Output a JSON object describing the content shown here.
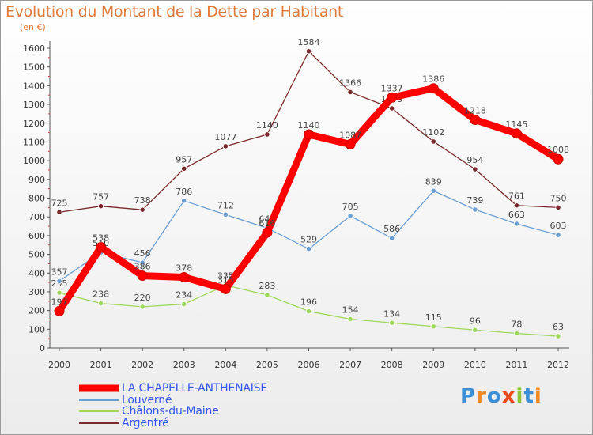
{
  "title": "Evolution du Montant de la Dette par Habitant",
  "unit": "(en €)",
  "logo": {
    "text": "Proxiti",
    "colors": [
      "#3a8fd8",
      "#f08a24",
      "#3a8fd8",
      "#e84a1a",
      "#8cc43c",
      "#3a8fd8",
      "#f08a24"
    ]
  },
  "chart_data": {
    "type": "line",
    "title": "Evolution du Montant de la Dette par Habitant",
    "ylabel": "(en €)",
    "xlabel": "",
    "ylim": [
      0,
      1600
    ],
    "yticks": [
      0,
      100,
      200,
      300,
      400,
      500,
      600,
      700,
      800,
      900,
      1000,
      1100,
      1200,
      1300,
      1400,
      1500,
      1600
    ],
    "grid": false,
    "legend_position": "bottom-left",
    "x": [
      "2000",
      "2001",
      "2002",
      "2003",
      "2004",
      "2005",
      "2006",
      "2007",
      "2008",
      "2009",
      "2010",
      "2011",
      "2012"
    ],
    "series": [
      {
        "name": "LA CHAPELLE-ANTHENAISE",
        "color": "#ff0000",
        "values": [
          197,
          538,
          386,
          378,
          315,
          616,
          1140,
          1087,
          1337,
          1386,
          1218,
          1145,
          1008
        ]
      },
      {
        "name": "Louverné",
        "color": "#6a9fd4",
        "values": [
          357,
          510,
          456,
          786,
          712,
          640,
          529,
          705,
          586,
          839,
          739,
          663,
          603
        ]
      },
      {
        "name": "Châlons-du-Maine",
        "color": "#9ed85a",
        "values": [
          295,
          238,
          220,
          234,
          335,
          283,
          196,
          154,
          134,
          115,
          96,
          78,
          63
        ]
      },
      {
        "name": "Argentré",
        "color": "#7a2a2a",
        "values": [
          725,
          757,
          738,
          957,
          1077,
          1140,
          1584,
          1366,
          1279,
          1102,
          954,
          761,
          750
        ]
      }
    ]
  }
}
